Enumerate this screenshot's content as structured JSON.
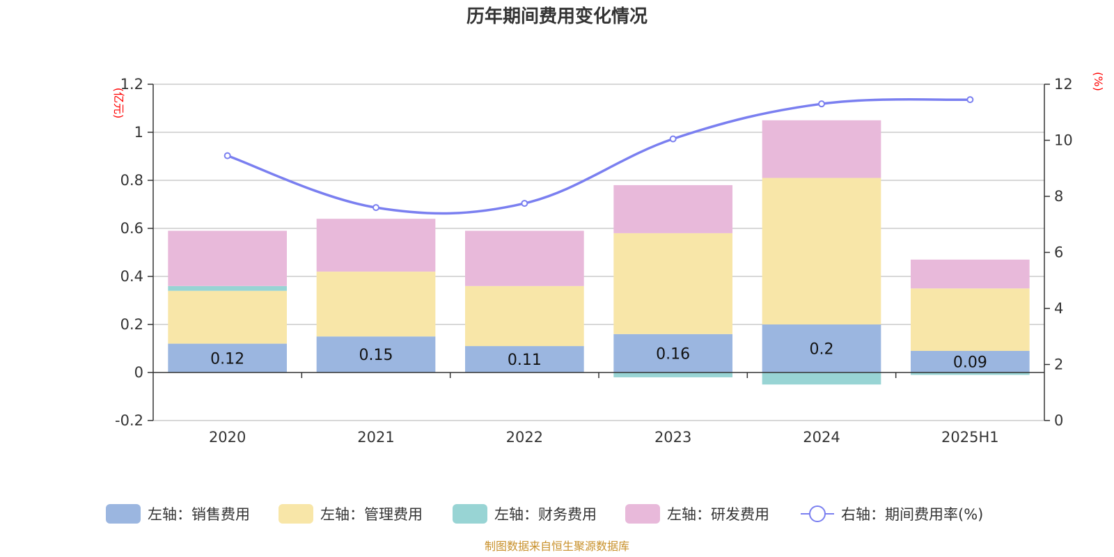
{
  "chart_data": {
    "type": "bar",
    "title": "历年期间费用变化情况",
    "categories": [
      "2020",
      "2021",
      "2022",
      "2023",
      "2024",
      "2025H1"
    ],
    "left_axis": {
      "unit": "(亿元)",
      "ylim": [
        -0.2,
        1.2
      ],
      "ticks": [
        -0.2,
        0,
        0.2,
        0.4,
        0.6,
        0.8,
        1,
        1.2
      ],
      "tick_labels": [
        "-0.2",
        "0",
        "0.2",
        "0.4",
        "0.6",
        "0.8",
        "1",
        "1.2"
      ]
    },
    "right_axis": {
      "unit": "(%)",
      "ylim": [
        0,
        12
      ],
      "ticks": [
        0,
        2,
        4,
        6,
        8,
        10,
        12
      ],
      "tick_labels": [
        "0",
        "2",
        "4",
        "6",
        "8",
        "10",
        "12"
      ]
    },
    "series": [
      {
        "name": "左轴：销售费用",
        "type": "bar",
        "axis": "left",
        "color": "#9bb6e0",
        "values": [
          0.12,
          0.15,
          0.11,
          0.16,
          0.2,
          0.09
        ],
        "labels": [
          "0.12",
          "0.15",
          "0.11",
          "0.16",
          "0.2",
          "0.09"
        ]
      },
      {
        "name": "左轴：管理费用",
        "type": "bar",
        "axis": "left",
        "color": "#f8e6a8",
        "values": [
          0.22,
          0.27,
          0.25,
          0.42,
          0.61,
          0.26
        ]
      },
      {
        "name": "左轴：财务费用",
        "type": "bar",
        "axis": "left",
        "color": "#98d4d4",
        "values": [
          0.02,
          0.0,
          0.0,
          -0.02,
          -0.05,
          -0.01
        ]
      },
      {
        "name": "左轴：研发费用",
        "type": "bar",
        "axis": "left",
        "color": "#e8b9da",
        "values": [
          0.23,
          0.22,
          0.23,
          0.2,
          0.24,
          0.12
        ]
      },
      {
        "name": "右轴：期间费用率(%)",
        "type": "line",
        "axis": "right",
        "color": "#7a7ff0",
        "values": [
          9.45,
          7.6,
          7.75,
          10.05,
          11.3,
          11.45
        ]
      }
    ],
    "grid": true,
    "legend_position": "bottom"
  },
  "source_text": "制图数据来自恒生聚源数据库"
}
